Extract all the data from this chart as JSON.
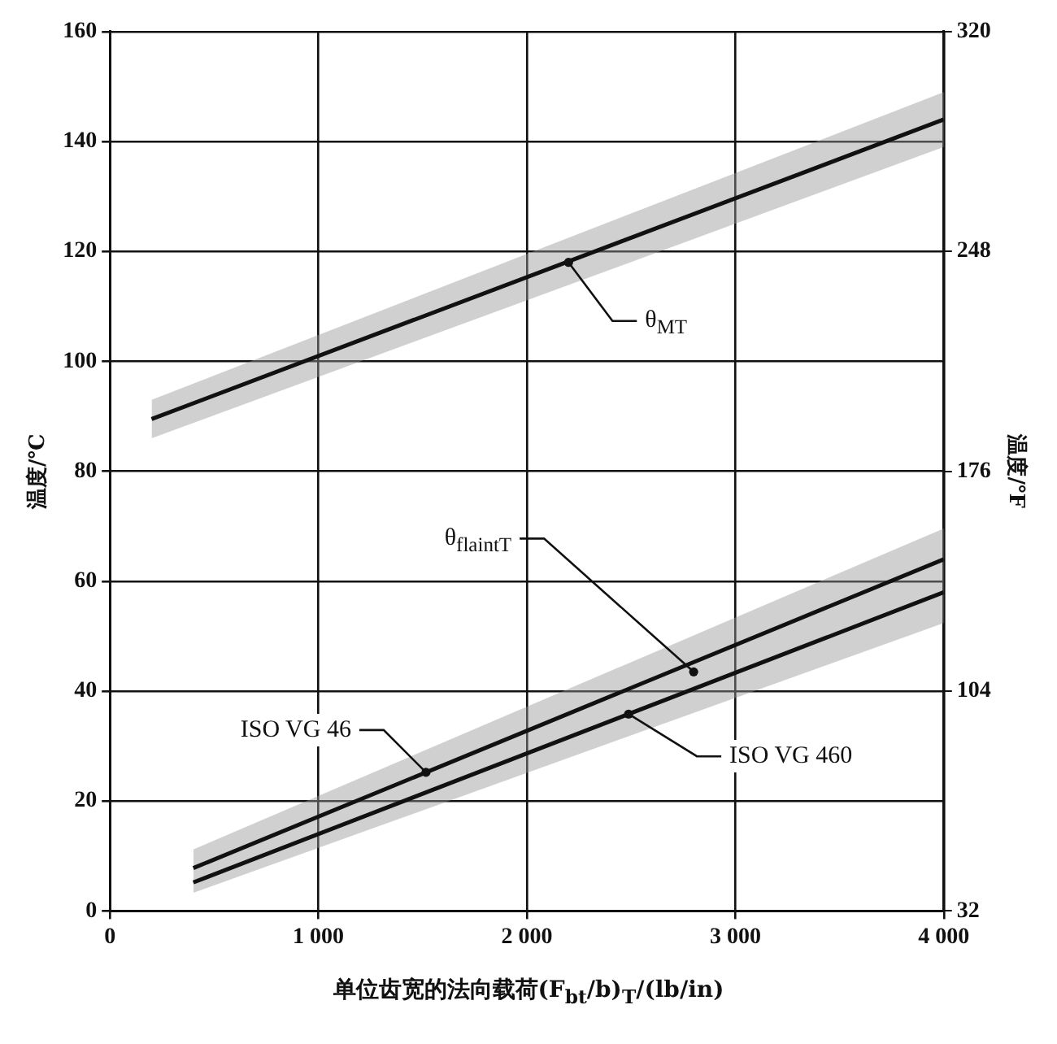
{
  "chart_data": {
    "type": "line",
    "xlabel": "单位齿宽的法向载荷(F$_{bt}$/b)$_{T}$/(lb/in)",
    "ylabel": "温度/℃",
    "y2label": "温度/℉",
    "xlim": [
      0,
      4000
    ],
    "xticks": [
      0,
      {
        "value": 1000,
        "label": "1 000"
      },
      {
        "value": 2000,
        "label": "2 000"
      },
      {
        "value": 3000,
        "label": "3 000"
      },
      {
        "value": 4000,
        "label": "4 000"
      }
    ],
    "ylim": [
      0,
      160
    ],
    "yticks": [
      0,
      20,
      40,
      60,
      80,
      100,
      120,
      140,
      160
    ],
    "y2lim": [
      32,
      320
    ],
    "y2ticks": [
      32,
      104,
      176,
      248,
      320
    ],
    "grid": true,
    "legend": false,
    "marker": "none",
    "line_style": "solid",
    "series": [
      {
        "color": "#111111",
        "x": [
          200,
          4000
        ],
        "values": [
          89.5,
          144
        ],
        "lower": [
          86,
          139
        ],
        "upper": [
          93,
          149
        ]
      },
      {
        "name": "ISO VG 46",
        "color": "#111111",
        "x": [
          400,
          4000
        ],
        "values": [
          7.8,
          64
        ],
        "lower": [
          3.3,
          52.4
        ],
        "upper": [
          11.2,
          69.6
        ]
      },
      {
        "name": "ISO VG 460",
        "color": "#111111",
        "x": [
          400,
          4000
        ],
        "values": [
          5.2,
          58
        ]
      }
    ],
    "annotations": [
      {
        "text": "θ$_{MT}$",
        "x": 2200,
        "y": 118
      },
      {
        "text": "θ$_{flaintT}$",
        "x": 2800,
        "y": 43.5
      }
    ]
  }
}
